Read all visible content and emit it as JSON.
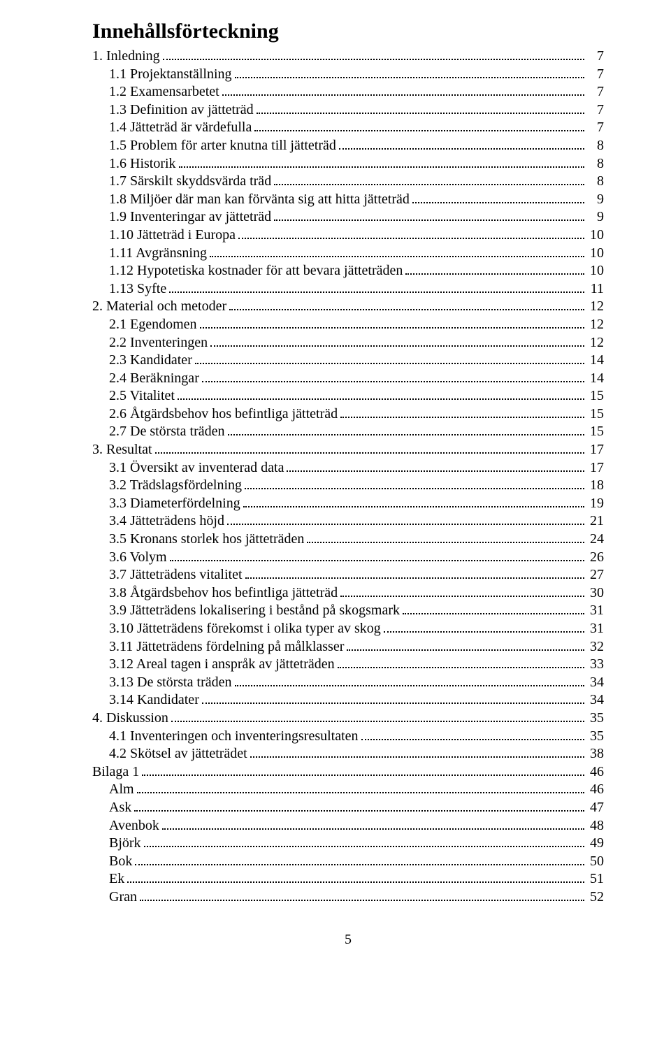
{
  "title": "Innehållsförteckning",
  "page_number": "5",
  "toc": [
    {
      "level": 0,
      "label": "1. Inledning",
      "page": "7"
    },
    {
      "level": 1,
      "label": "1.1 Projektanställning",
      "page": "7"
    },
    {
      "level": 1,
      "label": "1.2 Examensarbetet",
      "page": "7"
    },
    {
      "level": 1,
      "label": "1.3 Definition av jätteträd",
      "page": "7"
    },
    {
      "level": 1,
      "label": "1.4 Jätteträd är värdefulla",
      "page": "7"
    },
    {
      "level": 1,
      "label": "1.5 Problem för arter knutna till jätteträd",
      "page": "8"
    },
    {
      "level": 1,
      "label": "1.6 Historik",
      "page": "8"
    },
    {
      "level": 1,
      "label": "1.7 Särskilt skyddsvärda träd",
      "page": "8"
    },
    {
      "level": 1,
      "label": "1.8 Miljöer där man kan förvänta sig att hitta jätteträd",
      "page": "9"
    },
    {
      "level": 1,
      "label": "1.9 Inventeringar av jätteträd",
      "page": "9"
    },
    {
      "level": 1,
      "label": "1.10 Jätteträd i Europa",
      "page": "10"
    },
    {
      "level": 1,
      "label": "1.11 Avgränsning",
      "page": "10"
    },
    {
      "level": 1,
      "label": "1.12 Hypotetiska kostnader för att bevara jätteträden",
      "page": "10"
    },
    {
      "level": 1,
      "label": "1.13 Syfte",
      "page": "11"
    },
    {
      "level": 0,
      "label": "2. Material och metoder",
      "page": "12"
    },
    {
      "level": 1,
      "label": "2.1 Egendomen",
      "page": "12"
    },
    {
      "level": 1,
      "label": "2.2 Inventeringen",
      "page": "12"
    },
    {
      "level": 1,
      "label": "2.3 Kandidater",
      "page": "14"
    },
    {
      "level": 1,
      "label": "2.4 Beräkningar",
      "page": "14"
    },
    {
      "level": 1,
      "label": "2.5 Vitalitet",
      "page": "15"
    },
    {
      "level": 1,
      "label": "2.6 Åtgärdsbehov hos befintliga jätteträd",
      "page": "15"
    },
    {
      "level": 1,
      "label": "2.7 De största träden",
      "page": "15"
    },
    {
      "level": 0,
      "label": "3. Resultat",
      "page": "17"
    },
    {
      "level": 1,
      "label": "3.1 Översikt av inventerad data",
      "page": "17"
    },
    {
      "level": 1,
      "label": "3.2 Trädslagsfördelning",
      "page": "18"
    },
    {
      "level": 1,
      "label": "3.3 Diameterfördelning",
      "page": "19"
    },
    {
      "level": 1,
      "label": "3.4 Jätteträdens höjd",
      "page": "21"
    },
    {
      "level": 1,
      "label": "3.5 Kronans storlek hos jätteträden",
      "page": "24"
    },
    {
      "level": 1,
      "label": "3.6 Volym",
      "page": "26"
    },
    {
      "level": 1,
      "label": "3.7 Jätteträdens vitalitet",
      "page": "27"
    },
    {
      "level": 1,
      "label": "3.8 Åtgärdsbehov hos befintliga jätteträd",
      "page": "30"
    },
    {
      "level": 1,
      "label": "3.9 Jätteträdens lokalisering i bestånd på skogsmark",
      "page": "31"
    },
    {
      "level": 1,
      "label": "3.10 Jätteträdens förekomst i olika typer av skog",
      "page": "31"
    },
    {
      "level": 1,
      "label": "3.11 Jätteträdens fördelning på målklasser",
      "page": "32"
    },
    {
      "level": 1,
      "label": "3.12 Areal tagen i anspråk av jätteträden",
      "page": "33"
    },
    {
      "level": 1,
      "label": "3.13 De största träden",
      "page": "34"
    },
    {
      "level": 1,
      "label": "3.14 Kandidater",
      "page": "34"
    },
    {
      "level": 0,
      "label": "4. Diskussion",
      "page": "35"
    },
    {
      "level": 1,
      "label": "4.1 Inventeringen och inventeringsresultaten",
      "page": "35"
    },
    {
      "level": 1,
      "label": "4.2 Skötsel av jätteträdet",
      "page": "38"
    },
    {
      "level": 0,
      "label": "Bilaga 1",
      "page": "46"
    },
    {
      "level": 1,
      "label": "Alm",
      "page": "46"
    },
    {
      "level": 1,
      "label": "Ask",
      "page": "47"
    },
    {
      "level": 1,
      "label": "Avenbok",
      "page": "48"
    },
    {
      "level": 1,
      "label": "Björk",
      "page": "49"
    },
    {
      "level": 1,
      "label": "Bok",
      "page": "50"
    },
    {
      "level": 1,
      "label": "Ek",
      "page": "51"
    },
    {
      "level": 1,
      "label": "Gran",
      "page": "52"
    }
  ]
}
